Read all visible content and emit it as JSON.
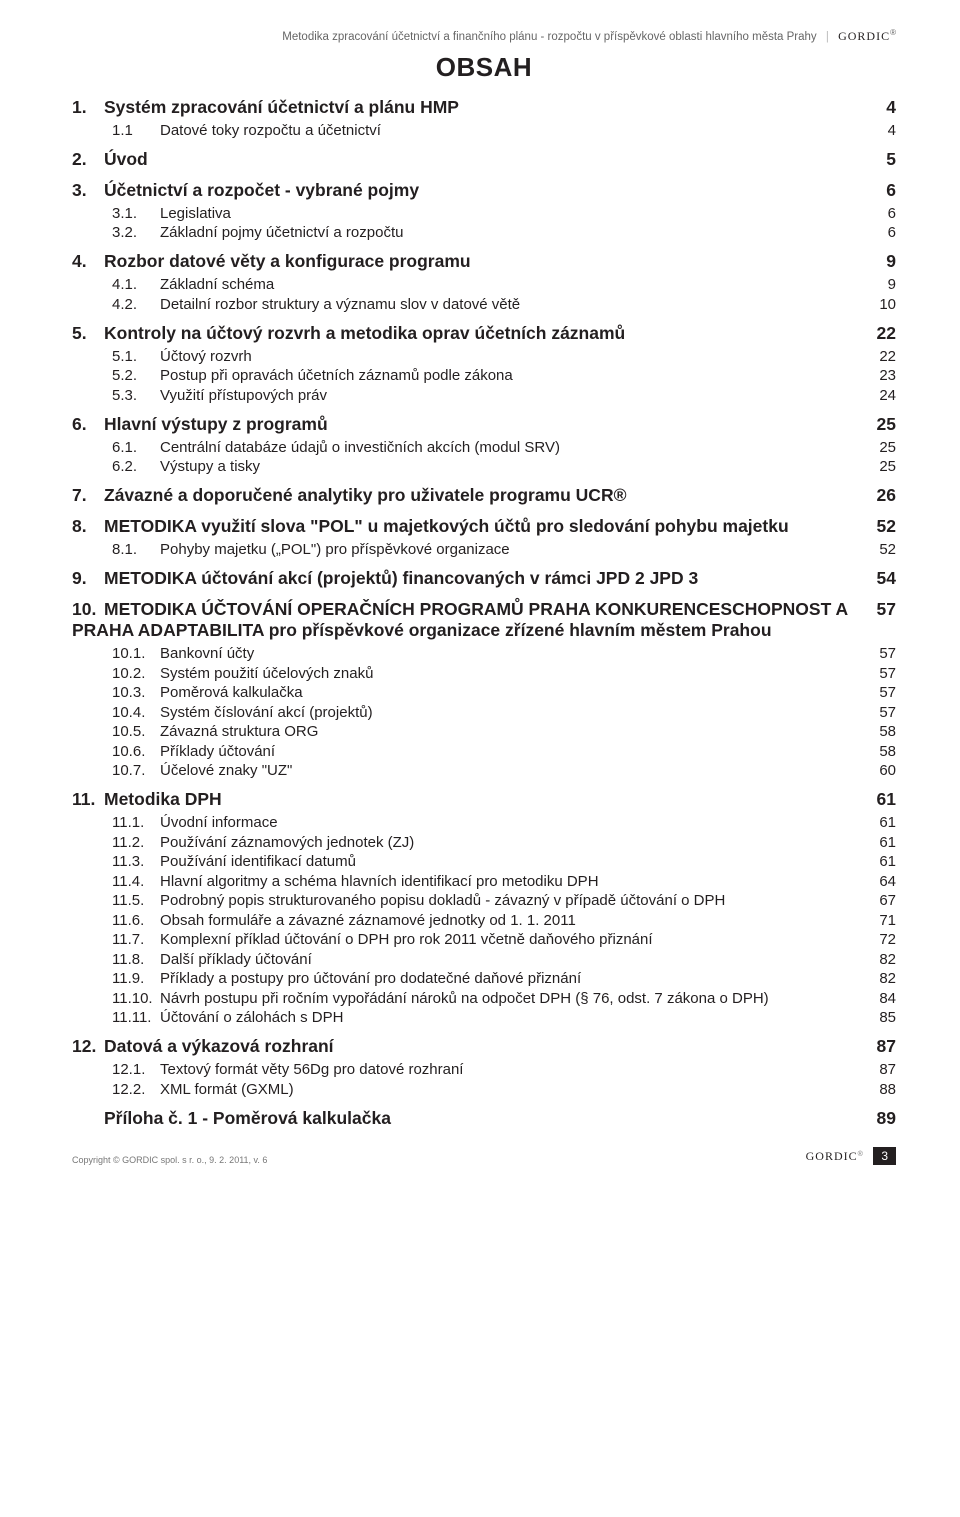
{
  "header": {
    "doc_title": "Metodika zpracování účetnictví a finančního plánu - rozpočtu v příspěvkové oblasti hlavního města Prahy",
    "brand": "GORDIC",
    "reg": "®"
  },
  "obsah_label": "OBSAH",
  "toc": [
    {
      "level": 1,
      "num": "1.",
      "title": "Systém zpracování účetnictví a plánu HMP",
      "page": "4"
    },
    {
      "level": 2,
      "num": "1.1",
      "title": "Datové toky rozpočtu a účetnictví",
      "page": "4"
    },
    {
      "level": 1,
      "num": "2.",
      "title": "Úvod",
      "page": "5"
    },
    {
      "level": 1,
      "num": "3.",
      "title": "Účetnictví a rozpočet - vybrané pojmy",
      "page": "6"
    },
    {
      "level": 2,
      "num": "3.1.",
      "title": "Legislativa",
      "page": "6"
    },
    {
      "level": 2,
      "num": "3.2.",
      "title": "Základní pojmy účetnictví a rozpočtu",
      "page": "6"
    },
    {
      "level": 1,
      "num": "4.",
      "title": "Rozbor datové věty a konfigurace programu",
      "page": "9"
    },
    {
      "level": 2,
      "num": "4.1.",
      "title": "Základní schéma",
      "page": "9"
    },
    {
      "level": 2,
      "num": "4.2.",
      "title": "Detailní rozbor struktury a významu slov v datové větě",
      "page": "10"
    },
    {
      "level": 1,
      "num": "5.",
      "title": "Kontroly na účtový rozvrh a metodika oprav účetních záznamů",
      "page": "22"
    },
    {
      "level": 2,
      "num": "5.1.",
      "title": "Účtový rozvrh",
      "page": "22"
    },
    {
      "level": 2,
      "num": "5.2.",
      "title": "Postup při opravách účetních záznamů podle zákona",
      "page": "23"
    },
    {
      "level": 2,
      "num": "5.3.",
      "title": "Využití přístupových práv",
      "page": "24"
    },
    {
      "level": 1,
      "num": "6.",
      "title": "Hlavní výstupy z programů",
      "page": "25"
    },
    {
      "level": 2,
      "num": "6.1.",
      "title": "Centrální databáze údajů o investičních akcích (modul SRV)",
      "page": "25"
    },
    {
      "level": 2,
      "num": "6.2.",
      "title": "Výstupy a tisky",
      "page": "25"
    },
    {
      "level": 1,
      "num": "7.",
      "title": "Závazné a doporučené analytiky pro uživatele programu UCR®",
      "page": "26"
    },
    {
      "level": 1,
      "num": "8.",
      "title": "METODIKA využití slova \"POL\" u majetkových účtů pro sledování pohybu majetku",
      "page": "52"
    },
    {
      "level": 2,
      "num": "8.1.",
      "title": "Pohyby majetku („POL\") pro příspěvkové organizace",
      "page": "52"
    },
    {
      "level": 1,
      "num": "9.",
      "title": "METODIKA účtování akcí (projektů) financovaných v rámci JPD 2 JPD 3",
      "page": "54"
    },
    {
      "level": 1,
      "num": "10.",
      "title": "METODIKA ÚČTOVÁNÍ OPERAČNÍCH PROGRAMŮ PRAHA KONKURENCESCHOPNOST A PRAHA ADAPTABILITA pro příspěvkové organizace zřízené hlavním městem Prahou",
      "page": "57"
    },
    {
      "level": 2,
      "num": "10.1.",
      "title": "Bankovní účty",
      "page": "57"
    },
    {
      "level": 2,
      "num": "10.2.",
      "title": "Systém použití účelových znaků",
      "page": "57"
    },
    {
      "level": 2,
      "num": "10.3.",
      "title": "Poměrová kalkulačka",
      "page": "57"
    },
    {
      "level": 2,
      "num": "10.4.",
      "title": "Systém číslování akcí (projektů)",
      "page": "57"
    },
    {
      "level": 2,
      "num": "10.5.",
      "title": "Závazná struktura ORG",
      "page": "58"
    },
    {
      "level": 2,
      "num": "10.6.",
      "title": "Příklady účtování",
      "page": "58"
    },
    {
      "level": 2,
      "num": "10.7.",
      "title": "Účelové znaky \"UZ\"",
      "page": "60"
    },
    {
      "level": 1,
      "num": "11.",
      "title": "Metodika DPH",
      "page": "61"
    },
    {
      "level": 2,
      "num": "11.1.",
      "title": "Úvodní informace",
      "page": "61"
    },
    {
      "level": 2,
      "num": "11.2.",
      "title": "Používání záznamových jednotek (ZJ)",
      "page": "61"
    },
    {
      "level": 2,
      "num": "11.3.",
      "title": "Používání identifikací datumů",
      "page": "61"
    },
    {
      "level": 2,
      "num": "11.4.",
      "title": "Hlavní algoritmy a schéma hlavních identifikací pro metodiku DPH",
      "page": "64"
    },
    {
      "level": 2,
      "num": "11.5.",
      "title": "Podrobný popis strukturovaného popisu dokladů - závazný v případě účtování o DPH",
      "page": "67"
    },
    {
      "level": 2,
      "num": "11.6.",
      "title": "Obsah formuláře a závazné záznamové jednotky od 1. 1. 2011",
      "page": "71"
    },
    {
      "level": 2,
      "num": "11.7.",
      "title": "Komplexní příklad účtování o DPH pro rok 2011 včetně daňového přiznání",
      "page": "72"
    },
    {
      "level": 2,
      "num": "11.8.",
      "title": "Další příklady účtování",
      "page": "82"
    },
    {
      "level": 2,
      "num": "11.9.",
      "title": "Příklady a postupy pro účtování pro dodatečné daňové přiznání",
      "page": "82"
    },
    {
      "level": 2,
      "num": "11.10.",
      "title": "Návrh postupu při ročním vypořádání nároků na odpočet DPH (§ 76, odst. 7 zákona o DPH)",
      "page": "84"
    },
    {
      "level": 2,
      "num": "11.11.",
      "title": "Účtování o zálohách s DPH",
      "page": "85"
    },
    {
      "level": 1,
      "num": "12.",
      "title": "Datová a výkazová rozhraní",
      "page": "87"
    },
    {
      "level": 2,
      "num": "12.1.",
      "title": "Textový formát věty 56Dg pro datové rozhraní",
      "page": "87"
    },
    {
      "level": 2,
      "num": "12.2.",
      "title": "XML formát (GXML)",
      "page": "88"
    },
    {
      "level": 1,
      "num": "",
      "title": "Příloha č. 1 - Poměrová kalkulačka",
      "page": "89"
    }
  ],
  "footer": {
    "copyright": "Copyright © GORDIC spol. s r. o., 9. 2. 2011, v. 6",
    "brand": "GORDIC",
    "reg": "®",
    "page_number": "3"
  }
}
